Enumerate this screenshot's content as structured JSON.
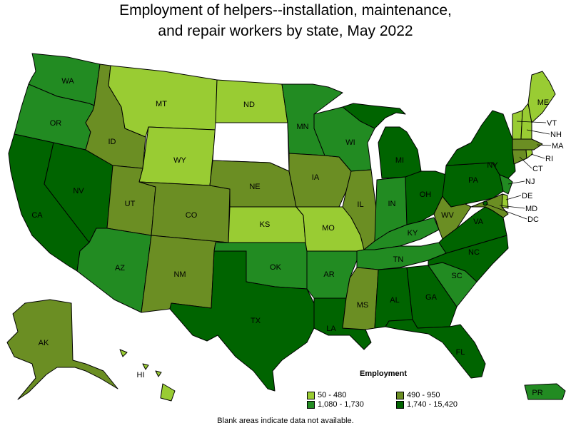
{
  "title_line1": "Employment of helpers--installation, maintenance,",
  "title_line2": "and repair workers by state, May 2022",
  "legend": {
    "title": "Employment",
    "items": [
      {
        "label": "50 - 480",
        "color": "#99cc33"
      },
      {
        "label": "490 - 950",
        "color": "#6b8e23"
      },
      {
        "label": "1,080 - 1,730",
        "color": "#228b22"
      },
      {
        "label": "1,740 - 15,420",
        "color": "#006400"
      }
    ]
  },
  "no_data_color": "#ffffff",
  "note": "Blank areas indicate data not available.",
  "states": {
    "WA": {
      "label": "WA",
      "class": 3
    },
    "OR": {
      "label": "OR",
      "class": 3
    },
    "CA": {
      "label": "CA",
      "class": 4
    },
    "NV": {
      "label": "NV",
      "class": 4
    },
    "ID": {
      "label": "ID",
      "class": 2
    },
    "MT": {
      "label": "MT",
      "class": 1
    },
    "WY": {
      "label": "WY",
      "class": 1
    },
    "UT": {
      "label": "UT",
      "class": 2
    },
    "AZ": {
      "label": "AZ",
      "class": 3
    },
    "CO": {
      "label": "CO",
      "class": 2
    },
    "NM": {
      "label": "NM",
      "class": 2
    },
    "ND": {
      "label": "ND",
      "class": 1
    },
    "SD": {
      "label": "",
      "class": 0
    },
    "NE": {
      "label": "NE",
      "class": 2
    },
    "KS": {
      "label": "KS",
      "class": 1
    },
    "OK": {
      "label": "OK",
      "class": 3
    },
    "TX": {
      "label": "TX",
      "class": 4
    },
    "MN": {
      "label": "MN",
      "class": 3
    },
    "IA": {
      "label": "IA",
      "class": 2
    },
    "MO": {
      "label": "MO",
      "class": 1
    },
    "AR": {
      "label": "AR",
      "class": 3
    },
    "LA": {
      "label": "LA",
      "class": 4
    },
    "WI": {
      "label": "WI",
      "class": 3
    },
    "IL": {
      "label": "IL",
      "class": 2
    },
    "MI": {
      "label": "MI",
      "class": 4
    },
    "IN": {
      "label": "IN",
      "class": 3
    },
    "OH": {
      "label": "OH",
      "class": 4
    },
    "KY": {
      "label": "KY",
      "class": 3
    },
    "TN": {
      "label": "TN",
      "class": 3
    },
    "MS": {
      "label": "MS",
      "class": 2
    },
    "AL": {
      "label": "AL",
      "class": 4
    },
    "GA": {
      "label": "GA",
      "class": 4
    },
    "FL": {
      "label": "FL",
      "class": 4
    },
    "SC": {
      "label": "SC",
      "class": 3
    },
    "NC": {
      "label": "NC",
      "class": 4
    },
    "VA": {
      "label": "VA",
      "class": 4
    },
    "WV": {
      "label": "WV",
      "class": 2
    },
    "PA": {
      "label": "PA",
      "class": 4
    },
    "NY": {
      "label": "NY",
      "class": 4
    },
    "ME": {
      "label": "ME",
      "class": 1
    },
    "VT": {
      "label": "VT",
      "class": 1
    },
    "NH": {
      "label": "NH",
      "class": 1
    },
    "MA": {
      "label": "MA",
      "class": 2
    },
    "RI": {
      "label": "RI",
      "class": 1
    },
    "CT": {
      "label": "CT",
      "class": 2
    },
    "NJ": {
      "label": "NJ",
      "class": 3
    },
    "DE": {
      "label": "DE",
      "class": 1
    },
    "MD": {
      "label": "MD",
      "class": 2
    },
    "DC": {
      "label": "DC",
      "class": 4
    },
    "AK": {
      "label": "AK",
      "class": 2
    },
    "HI": {
      "label": "HI",
      "class": 1
    },
    "PR": {
      "label": "PR",
      "class": 3
    }
  }
}
